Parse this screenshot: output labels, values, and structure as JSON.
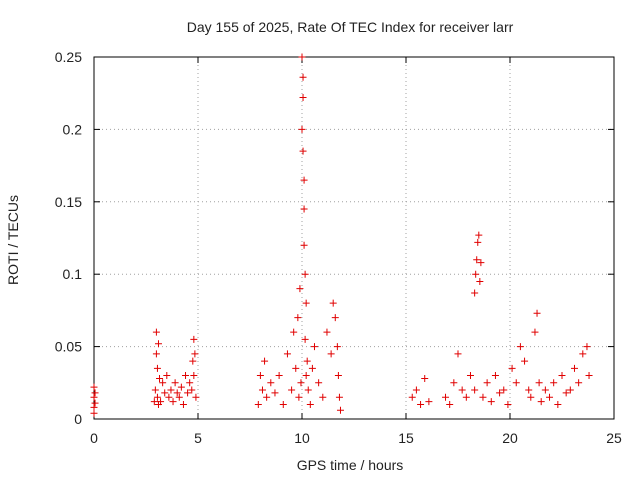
{
  "chart_data": {
    "type": "scatter",
    "title": "Day 155 of 2025, Rate Of TEC Index for receiver larr",
    "xlabel": "GPS time / hours",
    "ylabel": "ROTI / TECUs",
    "xlim": [
      0,
      25
    ],
    "ylim": [
      0,
      0.25
    ],
    "xticks": [
      0,
      5,
      10,
      15,
      20,
      25
    ],
    "xtick_labels": [
      "0",
      "5",
      "10",
      "15",
      "20",
      "25"
    ],
    "yticks": [
      0,
      0.05,
      0.1,
      0.15,
      0.2,
      0.25
    ],
    "ytick_labels": [
      "0",
      "0.05",
      "0.1",
      "0.15",
      "0.2",
      "0.25"
    ],
    "grid": true,
    "marker": "plus",
    "color": "#e00000",
    "series": [
      {
        "name": "ROTI",
        "x": [
          0.0,
          0.0,
          0.0,
          0.0,
          0.05,
          0.05,
          2.9,
          2.95,
          3.0,
          3.0,
          3.05,
          3.05,
          3.1,
          3.1,
          3.15,
          3.2,
          3.3,
          3.4,
          3.5,
          3.6,
          3.7,
          3.8,
          3.9,
          4.0,
          4.1,
          4.2,
          4.3,
          4.4,
          4.5,
          4.6,
          4.7,
          4.75,
          4.8,
          4.8,
          4.85,
          4.9,
          7.9,
          8.0,
          8.1,
          8.2,
          8.3,
          8.5,
          8.7,
          8.9,
          9.1,
          9.3,
          9.5,
          9.6,
          9.7,
          9.8,
          9.85,
          9.9,
          9.95,
          10.0,
          10.0,
          10.05,
          10.05,
          10.05,
          10.1,
          10.1,
          10.1,
          10.15,
          10.15,
          10.2,
          10.2,
          10.25,
          10.3,
          10.4,
          10.5,
          10.6,
          10.8,
          11.0,
          11.2,
          11.4,
          11.5,
          11.6,
          11.7,
          11.75,
          11.8,
          11.85,
          15.3,
          15.5,
          15.7,
          15.9,
          16.1,
          16.9,
          17.1,
          17.3,
          17.5,
          17.7,
          17.9,
          18.1,
          18.3,
          18.3,
          18.35,
          18.4,
          18.45,
          18.5,
          18.55,
          18.6,
          18.7,
          18.9,
          19.1,
          19.3,
          19.5,
          19.7,
          19.9,
          20.1,
          20.3,
          20.5,
          20.7,
          20.9,
          21.0,
          21.2,
          21.3,
          21.4,
          21.5,
          21.7,
          21.9,
          22.1,
          22.3,
          22.5,
          22.7,
          22.9,
          23.1,
          23.3,
          23.5,
          23.7,
          23.8
        ],
        "y": [
          0.022,
          0.015,
          0.008,
          0.004,
          0.018,
          0.011,
          0.012,
          0.02,
          0.06,
          0.045,
          0.035,
          0.015,
          0.052,
          0.01,
          0.028,
          0.012,
          0.025,
          0.018,
          0.03,
          0.015,
          0.02,
          0.012,
          0.025,
          0.018,
          0.015,
          0.022,
          0.01,
          0.03,
          0.018,
          0.025,
          0.02,
          0.04,
          0.055,
          0.03,
          0.045,
          0.015,
          0.01,
          0.03,
          0.02,
          0.04,
          0.015,
          0.025,
          0.018,
          0.03,
          0.01,
          0.045,
          0.02,
          0.06,
          0.035,
          0.07,
          0.015,
          0.09,
          0.025,
          0.25,
          0.2,
          0.236,
          0.222,
          0.185,
          0.165,
          0.145,
          0.12,
          0.1,
          0.055,
          0.08,
          0.03,
          0.04,
          0.02,
          0.01,
          0.035,
          0.05,
          0.025,
          0.015,
          0.06,
          0.045,
          0.08,
          0.07,
          0.05,
          0.03,
          0.015,
          0.006,
          0.015,
          0.02,
          0.01,
          0.028,
          0.012,
          0.015,
          0.01,
          0.025,
          0.045,
          0.02,
          0.015,
          0.03,
          0.02,
          0.087,
          0.1,
          0.11,
          0.122,
          0.127,
          0.095,
          0.108,
          0.015,
          0.025,
          0.012,
          0.03,
          0.018,
          0.02,
          0.01,
          0.035,
          0.025,
          0.05,
          0.04,
          0.02,
          0.015,
          0.06,
          0.073,
          0.025,
          0.012,
          0.02,
          0.015,
          0.025,
          0.01,
          0.03,
          0.018,
          0.02,
          0.035,
          0.025,
          0.045,
          0.05,
          0.03
        ]
      }
    ]
  }
}
